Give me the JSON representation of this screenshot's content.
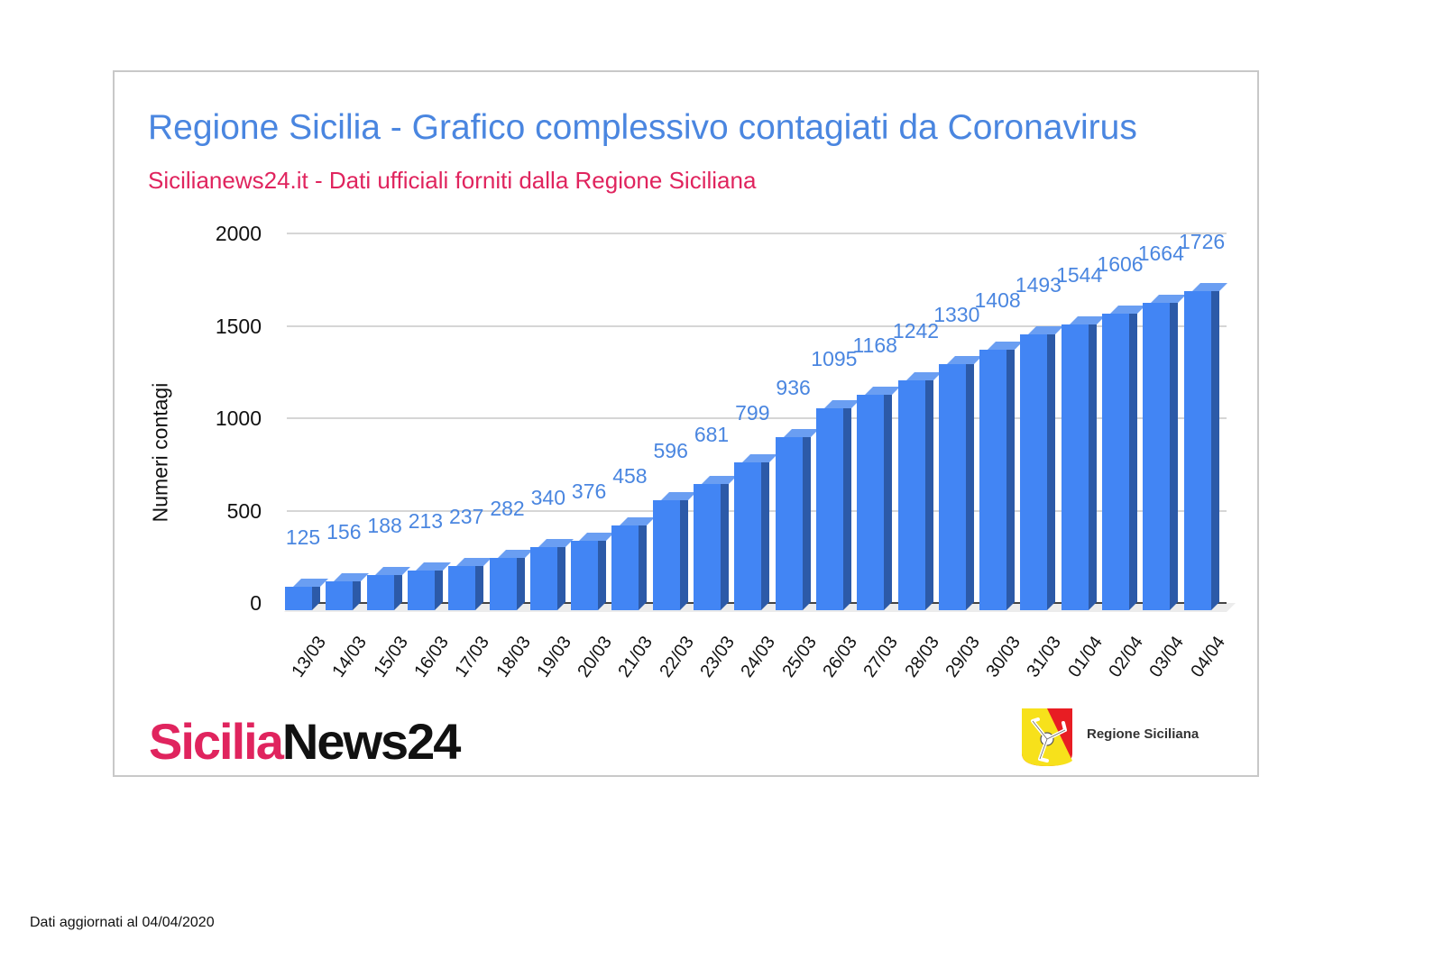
{
  "chart_data": {
    "type": "bar",
    "title": "Regione Sicilia - Grafico complessivo contagiati da Coronavirus",
    "subtitle": "Sicilianews24.it - Dati ufficiali forniti dalla Regione Siciliana",
    "xlabel": "",
    "ylabel": "Numeri contagi",
    "ylim": [
      0,
      2000
    ],
    "yticks": [
      0,
      500,
      1000,
      1500,
      2000
    ],
    "grid": true,
    "legend": null,
    "style": "3d-column",
    "categories": [
      "13/03",
      "14/03",
      "15/03",
      "16/03",
      "17/03",
      "18/03",
      "19/03",
      "20/03",
      "21/03",
      "22/03",
      "23/03",
      "24/03",
      "25/03",
      "26/03",
      "27/03",
      "28/03",
      "29/03",
      "30/03",
      "31/03",
      "01/04",
      "02/04",
      "03/04",
      "04/04"
    ],
    "values": [
      125,
      156,
      188,
      213,
      237,
      282,
      340,
      376,
      458,
      596,
      681,
      799,
      936,
      1095,
      1168,
      1242,
      1330,
      1408,
      1493,
      1544,
      1606,
      1664,
      1726
    ],
    "colors": {
      "bar": "#4285f4",
      "bar_side": "#2c5aa8",
      "bar_top": "#6a9ef2",
      "labels": "#4a86e0",
      "title": "#4a86e0",
      "subtitle": "#e0245e"
    }
  },
  "header": {
    "title": "Regione Sicilia - Grafico complessivo contagiati da Coronavirus",
    "subtitle": "Sicilianews24.it - Dati ufficiali forniti dalla Regione Siciliana"
  },
  "axis": {
    "ylabel": "Numeri contagi",
    "yticks": [
      "2000",
      "1500",
      "1000",
      "500",
      "0"
    ]
  },
  "branding": {
    "logo_part1": "Sicilia",
    "logo_part2": "News24",
    "region_name": "Regione Siciliana",
    "crest_icon": "trinacria-crest-icon"
  },
  "footer": {
    "note": "Dati aggiornati al 04/04/2020"
  }
}
